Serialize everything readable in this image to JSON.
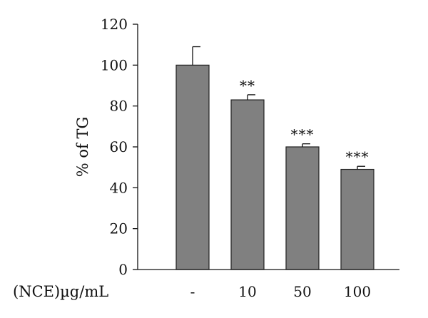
{
  "chart_data": {
    "type": "bar",
    "title": "",
    "ylabel": "% of TG",
    "xlabel": "",
    "x_prefix_label": "(NCE)µg/mL",
    "categories": [
      "-",
      "10",
      "50",
      "100"
    ],
    "values": [
      100,
      83,
      60,
      49
    ],
    "error": [
      9,
      2.5,
      1.5,
      1.5
    ],
    "significance": [
      "",
      "**",
      "***",
      "***"
    ],
    "ylim": [
      0,
      120
    ],
    "yticks": [
      0,
      20,
      40,
      60,
      80,
      100,
      120
    ],
    "grid": false,
    "legend": "none",
    "bar_color": "#808080",
    "bar_edge_color": "#222222"
  }
}
